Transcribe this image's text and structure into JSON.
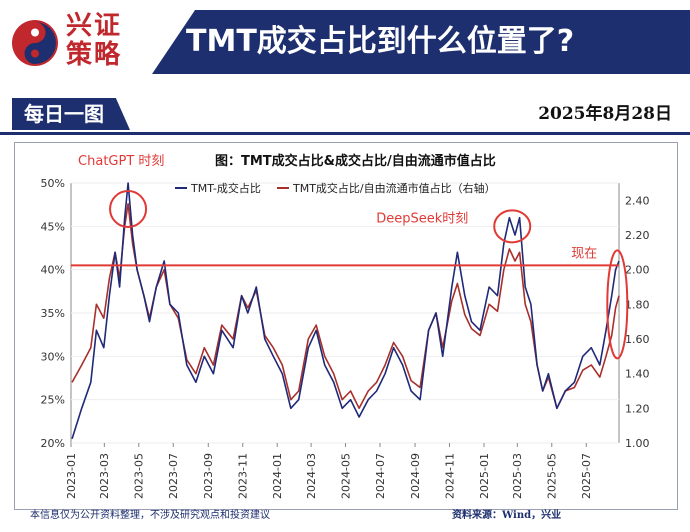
{
  "brand": {
    "name_line1": "兴证",
    "name_line2": "策略",
    "logo": "xingzheng-logo-icon"
  },
  "header": {
    "title": "TMT成交占比到什么位置了?"
  },
  "subheader": {
    "tab_label": "每日一图",
    "date": "2025年8月28日"
  },
  "footer": {
    "disclaimer": "本信息仅为公开资料整理，不涉及研究观点和投资建议",
    "source": "资料来源：Wind，兴业"
  },
  "colors": {
    "navy": "#1d2f6f",
    "red": "#c0282d",
    "series1": "#1f2a78",
    "series2": "#a8302b",
    "annotation": "#e03a36"
  },
  "chart_data": {
    "type": "line",
    "title": "图：TMT成交占比&成交占比/自由流通市值占比",
    "x_ticks": [
      "2023-01",
      "2023-03",
      "2023-05",
      "2023-07",
      "2023-09",
      "2023-11",
      "2024-01",
      "2024-03",
      "2024-05",
      "2024-07",
      "2024-09",
      "2024-11",
      "2025-01",
      "2025-03",
      "2025-05",
      "2025-07"
    ],
    "x_range": [
      "2023-01-01",
      "2025-08-28"
    ],
    "y_left": {
      "ticks": [
        "20%",
        "25%",
        "30%",
        "35%",
        "40%",
        "45%",
        "50%"
      ],
      "range": [
        20,
        50
      ],
      "unit": "%"
    },
    "y_right": {
      "ticks": [
        "1.00",
        "1.20",
        "1.40",
        "1.60",
        "1.80",
        "2.00",
        "2.20",
        "2.40"
      ],
      "range": [
        1.0,
        2.5
      ]
    },
    "series": [
      {
        "name": "TMT-成交占比",
        "axis": "left",
        "points": [
          [
            "2023-01-03",
            20.5
          ],
          [
            "2023-01-20",
            24
          ],
          [
            "2023-02-05",
            27
          ],
          [
            "2023-02-15",
            33
          ],
          [
            "2023-02-28",
            31
          ],
          [
            "2023-03-10",
            37
          ],
          [
            "2023-03-20",
            42
          ],
          [
            "2023-03-28",
            38
          ],
          [
            "2023-04-06",
            46
          ],
          [
            "2023-04-12",
            50
          ],
          [
            "2023-04-20",
            44
          ],
          [
            "2023-04-28",
            40
          ],
          [
            "2023-05-10",
            37
          ],
          [
            "2023-05-20",
            34
          ],
          [
            "2023-06-01",
            38
          ],
          [
            "2023-06-15",
            41
          ],
          [
            "2023-06-25",
            36
          ],
          [
            "2023-07-10",
            35
          ],
          [
            "2023-07-25",
            29
          ],
          [
            "2023-08-10",
            27
          ],
          [
            "2023-08-25",
            30
          ],
          [
            "2023-09-10",
            28
          ],
          [
            "2023-09-25",
            33
          ],
          [
            "2023-10-15",
            31
          ],
          [
            "2023-10-30",
            37
          ],
          [
            "2023-11-10",
            35
          ],
          [
            "2023-11-25",
            38
          ],
          [
            "2023-12-10",
            32
          ],
          [
            "2023-12-25",
            30
          ],
          [
            "2024-01-10",
            28
          ],
          [
            "2024-01-25",
            24
          ],
          [
            "2024-02-08",
            25
          ],
          [
            "2024-02-25",
            31
          ],
          [
            "2024-03-10",
            33
          ],
          [
            "2024-03-25",
            29
          ],
          [
            "2024-04-10",
            27
          ],
          [
            "2024-04-25",
            24
          ],
          [
            "2024-05-10",
            25
          ],
          [
            "2024-05-25",
            23
          ],
          [
            "2024-06-10",
            25
          ],
          [
            "2024-06-25",
            26
          ],
          [
            "2024-07-10",
            28
          ],
          [
            "2024-07-25",
            31
          ],
          [
            "2024-08-10",
            29
          ],
          [
            "2024-08-25",
            26
          ],
          [
            "2024-09-10",
            25
          ],
          [
            "2024-09-25",
            33
          ],
          [
            "2024-10-08",
            35
          ],
          [
            "2024-10-20",
            30
          ],
          [
            "2024-11-05",
            38
          ],
          [
            "2024-11-15",
            42
          ],
          [
            "2024-11-28",
            37
          ],
          [
            "2024-12-10",
            34
          ],
          [
            "2024-12-25",
            33
          ],
          [
            "2025-01-10",
            38
          ],
          [
            "2025-01-25",
            37
          ],
          [
            "2025-02-05",
            43
          ],
          [
            "2025-02-15",
            46
          ],
          [
            "2025-02-25",
            44
          ],
          [
            "2025-03-05",
            46
          ],
          [
            "2025-03-15",
            38
          ],
          [
            "2025-03-25",
            36
          ],
          [
            "2025-04-05",
            29
          ],
          [
            "2025-04-15",
            26
          ],
          [
            "2025-04-25",
            28
          ],
          [
            "2025-05-10",
            24
          ],
          [
            "2025-05-25",
            26
          ],
          [
            "2025-06-10",
            27
          ],
          [
            "2025-06-25",
            30
          ],
          [
            "2025-07-10",
            31
          ],
          [
            "2025-07-25",
            29
          ],
          [
            "2025-08-05",
            33
          ],
          [
            "2025-08-15",
            37
          ],
          [
            "2025-08-22",
            40
          ],
          [
            "2025-08-28",
            41
          ]
        ]
      },
      {
        "name": "TMT成交占比/自由流通市值占比（右轴）",
        "axis": "right",
        "points": [
          [
            "2023-01-03",
            1.35
          ],
          [
            "2023-01-20",
            1.45
          ],
          [
            "2023-02-05",
            1.55
          ],
          [
            "2023-02-15",
            1.8
          ],
          [
            "2023-02-28",
            1.72
          ],
          [
            "2023-03-10",
            1.95
          ],
          [
            "2023-03-20",
            2.1
          ],
          [
            "2023-03-28",
            1.95
          ],
          [
            "2023-04-06",
            2.25
          ],
          [
            "2023-04-12",
            2.38
          ],
          [
            "2023-04-20",
            2.15
          ],
          [
            "2023-04-28",
            2.0
          ],
          [
            "2023-05-10",
            1.85
          ],
          [
            "2023-05-20",
            1.72
          ],
          [
            "2023-06-01",
            1.9
          ],
          [
            "2023-06-15",
            2.0
          ],
          [
            "2023-06-25",
            1.8
          ],
          [
            "2023-07-10",
            1.72
          ],
          [
            "2023-07-25",
            1.48
          ],
          [
            "2023-08-10",
            1.4
          ],
          [
            "2023-08-25",
            1.55
          ],
          [
            "2023-09-10",
            1.45
          ],
          [
            "2023-09-25",
            1.68
          ],
          [
            "2023-10-15",
            1.6
          ],
          [
            "2023-10-30",
            1.85
          ],
          [
            "2023-11-10",
            1.78
          ],
          [
            "2023-11-25",
            1.88
          ],
          [
            "2023-12-10",
            1.62
          ],
          [
            "2023-12-25",
            1.55
          ],
          [
            "2024-01-10",
            1.45
          ],
          [
            "2024-01-25",
            1.25
          ],
          [
            "2024-02-08",
            1.3
          ],
          [
            "2024-02-25",
            1.6
          ],
          [
            "2024-03-10",
            1.68
          ],
          [
            "2024-03-25",
            1.5
          ],
          [
            "2024-04-10",
            1.4
          ],
          [
            "2024-04-25",
            1.25
          ],
          [
            "2024-05-10",
            1.3
          ],
          [
            "2024-05-25",
            1.2
          ],
          [
            "2024-06-10",
            1.3
          ],
          [
            "2024-06-25",
            1.35
          ],
          [
            "2024-07-10",
            1.45
          ],
          [
            "2024-07-25",
            1.58
          ],
          [
            "2024-08-10",
            1.5
          ],
          [
            "2024-08-25",
            1.36
          ],
          [
            "2024-09-10",
            1.32
          ],
          [
            "2024-09-25",
            1.65
          ],
          [
            "2024-10-08",
            1.75
          ],
          [
            "2024-10-20",
            1.55
          ],
          [
            "2024-11-05",
            1.82
          ],
          [
            "2024-11-15",
            1.92
          ],
          [
            "2024-11-28",
            1.74
          ],
          [
            "2024-12-10",
            1.66
          ],
          [
            "2024-12-25",
            1.62
          ],
          [
            "2025-01-10",
            1.8
          ],
          [
            "2025-01-25",
            1.76
          ],
          [
            "2025-02-05",
            2.0
          ],
          [
            "2025-02-15",
            2.12
          ],
          [
            "2025-02-25",
            2.05
          ],
          [
            "2025-03-05",
            2.1
          ],
          [
            "2025-03-15",
            1.8
          ],
          [
            "2025-03-25",
            1.7
          ],
          [
            "2025-04-05",
            1.45
          ],
          [
            "2025-04-15",
            1.3
          ],
          [
            "2025-04-25",
            1.38
          ],
          [
            "2025-05-10",
            1.2
          ],
          [
            "2025-05-25",
            1.3
          ],
          [
            "2025-06-10",
            1.32
          ],
          [
            "2025-06-25",
            1.42
          ],
          [
            "2025-07-10",
            1.45
          ],
          [
            "2025-07-25",
            1.38
          ],
          [
            "2025-08-05",
            1.5
          ],
          [
            "2025-08-15",
            1.62
          ],
          [
            "2025-08-22",
            1.78
          ],
          [
            "2025-08-28",
            1.85
          ]
        ]
      }
    ],
    "reference_line": {
      "axis": "left",
      "value": 40.5
    },
    "annotations": [
      {
        "text": "ChatGPT 时刻",
        "date": "2023-04-12",
        "value": 47
      },
      {
        "text": "DeepSeek时刻",
        "date": "2025-02-20",
        "value": 45
      },
      {
        "text": "现在",
        "date": "2025-08-25",
        "value": 36
      }
    ]
  }
}
